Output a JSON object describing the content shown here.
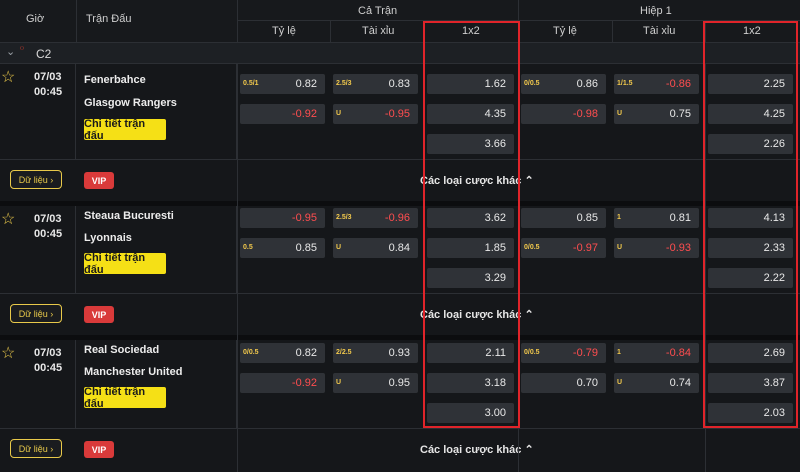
{
  "header": {
    "time": "Giờ",
    "match": "Trận Đấu",
    "full_time": "Cả Trận",
    "first_half": "Hiệp 1",
    "handicap": "Tỷ lệ",
    "over_under": "Tài xỉu",
    "one_x_two": "1x2"
  },
  "league": {
    "collapse_icon": "chevron-down-icon",
    "name": "C2"
  },
  "common": {
    "detail_btn": "Chi tiết trận đấu",
    "data_btn": "Dữ liệu",
    "vip": "VIP",
    "more_bets": "Các loại cược khác"
  },
  "matches": [
    {
      "date": "07/03",
      "time": "00:45",
      "home": "Fenerbahce",
      "away": "Glasgow Rangers",
      "ft_hdp": {
        "home_line": "0.5/1",
        "home_odd": "0.82",
        "away_line": "",
        "away_odd": "-0.92"
      },
      "ft_ou": {
        "over_line": "2.5/3",
        "over_odd": "0.83",
        "under_line": "U",
        "under_odd": "-0.95"
      },
      "ft_1x2": [
        "1.62",
        "4.35",
        "3.66"
      ],
      "h1_hdp": {
        "home_line": "0/0.5",
        "home_odd": "0.86",
        "away_line": "",
        "away_odd": "-0.98"
      },
      "h1_ou": {
        "over_line": "1/1.5",
        "over_odd": "-0.86",
        "under_line": "U",
        "under_odd": "0.75"
      },
      "h1_1x2": [
        "2.25",
        "4.25",
        "2.26"
      ]
    },
    {
      "date": "07/03",
      "time": "00:45",
      "home": "Steaua Bucuresti",
      "away": "Lyonnais",
      "ft_hdp": {
        "home_line": "",
        "home_odd": "-0.95",
        "away_line": "0.5",
        "away_odd": "0.85"
      },
      "ft_ou": {
        "over_line": "2.5/3",
        "over_odd": "-0.96",
        "under_line": "U",
        "under_odd": "0.84"
      },
      "ft_1x2": [
        "3.62",
        "1.85",
        "3.29"
      ],
      "h1_hdp": {
        "home_line": "",
        "home_odd": "0.85",
        "away_line": "0/0.5",
        "away_odd": "-0.97"
      },
      "h1_ou": {
        "over_line": "1",
        "over_odd": "0.81",
        "under_line": "U",
        "under_odd": "-0.93"
      },
      "h1_1x2": [
        "4.13",
        "2.33",
        "2.22"
      ]
    },
    {
      "date": "07/03",
      "time": "00:45",
      "home": "Real Sociedad",
      "away": "Manchester United",
      "ft_hdp": {
        "home_line": "0/0.5",
        "home_odd": "0.82",
        "away_line": "",
        "away_odd": "-0.92"
      },
      "ft_ou": {
        "over_line": "2/2.5",
        "over_odd": "0.93",
        "under_line": "U",
        "under_odd": "0.95"
      },
      "ft_1x2": [
        "2.11",
        "3.18",
        "3.00"
      ],
      "h1_hdp": {
        "home_line": "0/0.5",
        "home_odd": "-0.79",
        "away_line": "",
        "away_odd": "0.70"
      },
      "h1_ou": {
        "over_line": "1",
        "over_odd": "-0.84",
        "under_line": "U",
        "under_odd": "0.74"
      },
      "h1_1x2": [
        "2.69",
        "3.87",
        "2.03"
      ]
    }
  ]
}
